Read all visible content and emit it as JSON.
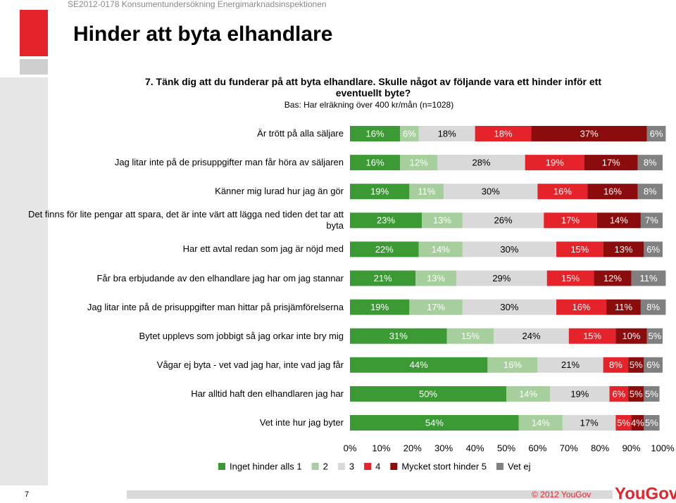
{
  "slide": {
    "header": "SE2012-0178 Konsumentundersökning Energimarknadsinspektionen",
    "title": "Hinder att byta elhandlare",
    "page_number": "7",
    "copyright": "© 2012 YouGov",
    "logo": "YouGov"
  },
  "chart_data": {
    "type": "stacked-barh",
    "title": "7.  Tänk dig att du funderar på att byta elhandlare. Skulle något av följande vara ett hinder inför ett eventuellt byte?",
    "subtitle": "Bas: Har elräkning över 400 kr/mån (n=1028)",
    "categories": [
      "Är trött på alla säljare",
      "Jag litar inte på de prisuppgifter man får höra av säljaren",
      "Känner mig lurad hur jag än gör",
      "Det finns för lite pengar att spara, det är inte värt att lägga ned tiden det tar att byta",
      "Har ett avtal redan som jag är nöjd med",
      "Får bra erbjudande av den elhandlare jag har om jag stannar",
      "Jag litar inte på de prisuppgifter man hittar på prisjämförelserna",
      "Bytet upplevs som jobbigt så jag orkar inte bry mig",
      "Vågar ej byta - vet vad jag har, inte vad jag får",
      "Har alltid haft den elhandlaren jag har",
      "Vet inte hur jag byter"
    ],
    "series": [
      {
        "name": "Inget hinder alls 1",
        "color": "#3c9a35",
        "values": [
          16,
          16,
          19,
          23,
          22,
          21,
          19,
          31,
          44,
          50,
          54
        ],
        "value_labels": [
          "16%",
          "16%",
          "19%",
          "23%",
          "22%",
          "21%",
          "19%",
          "31%",
          "44%",
          "50%",
          "54%"
        ]
      },
      {
        "name": "2",
        "color": "#a6cf9d",
        "values": [
          6,
          12,
          11,
          13,
          14,
          13,
          17,
          15,
          16,
          14,
          14
        ],
        "value_labels": [
          "6%",
          "12%",
          "11%",
          "13%",
          "14%",
          "13%",
          "17%",
          "15%",
          "16%",
          "14%",
          "14%"
        ]
      },
      {
        "name": "3",
        "color": "#d9d9d9",
        "values": [
          18,
          28,
          30,
          26,
          30,
          29,
          30,
          24,
          21,
          19,
          17
        ],
        "value_labels": [
          "18%",
          "28%",
          "30%",
          "26%",
          "30%",
          "29%",
          "30%",
          "24%",
          "21%",
          "19%",
          "17%"
        ]
      },
      {
        "name": "4",
        "color": "#e5232a",
        "values": [
          18,
          19,
          16,
          17,
          15,
          15,
          16,
          15,
          8,
          6,
          5
        ],
        "value_labels": [
          "18%",
          "19%",
          "16%",
          "17%",
          "15%",
          "15%",
          "16%",
          "15%",
          "8%",
          "6%",
          "5%"
        ]
      },
      {
        "name": "Mycket stort hinder 5",
        "color": "#8b0c0c",
        "values": [
          37,
          17,
          16,
          14,
          13,
          12,
          11,
          10,
          5,
          5,
          4
        ],
        "value_labels": [
          "37%",
          "17%",
          "16%",
          "14%",
          "13%",
          "12%",
          "11%",
          "10%",
          "5%",
          "5%",
          "4%"
        ]
      },
      {
        "name": "Vet ej",
        "color": "#808080",
        "values": [
          6,
          8,
          8,
          7,
          6,
          11,
          8,
          5,
          6,
          5,
          5
        ],
        "value_labels": [
          "6%",
          "8%",
          "8%",
          "7%",
          "6%",
          "11%",
          "8%",
          "5%",
          "6%",
          "5%",
          "5%"
        ]
      }
    ],
    "xlim": [
      0,
      100
    ],
    "xticks": [
      {
        "value": 0,
        "label": "0%"
      },
      {
        "value": 10,
        "label": "10%"
      },
      {
        "value": 20,
        "label": "20%"
      },
      {
        "value": 30,
        "label": "30%"
      },
      {
        "value": 40,
        "label": "40%"
      },
      {
        "value": 50,
        "label": "50%"
      },
      {
        "value": 60,
        "label": "60%"
      },
      {
        "value": 70,
        "label": "70%"
      },
      {
        "value": 80,
        "label": "80%"
      },
      {
        "value": 90,
        "label": "90%"
      },
      {
        "value": 100,
        "label": "100%"
      }
    ],
    "legend": "bottom"
  }
}
